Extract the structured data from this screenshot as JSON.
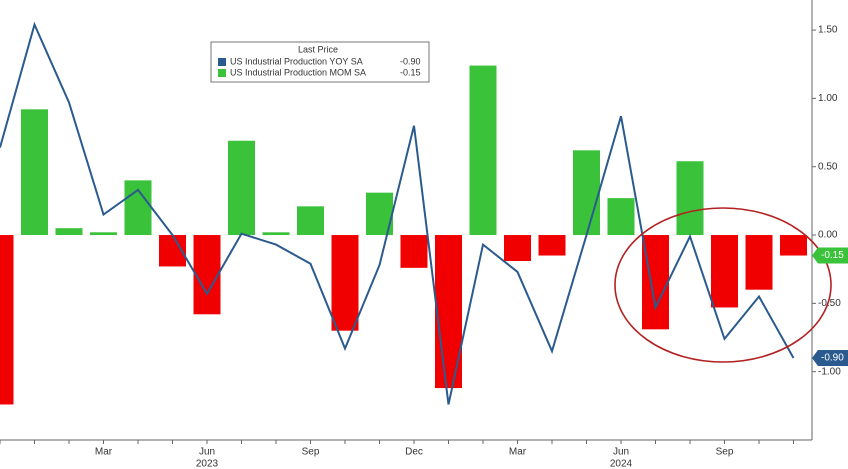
{
  "chart_data": {
    "type": "bar_line",
    "legend_title": "Last Price",
    "categories": [
      null,
      null,
      null,
      "Mar",
      null,
      null,
      "Jun",
      null,
      null,
      "Sep",
      null,
      null,
      "Dec",
      null,
      null,
      "Mar",
      null,
      null,
      "Jun",
      null,
      null,
      "Sep",
      null,
      null
    ],
    "category_years": [
      null,
      null,
      null,
      null,
      null,
      null,
      "2023",
      null,
      null,
      null,
      null,
      null,
      null,
      null,
      null,
      null,
      null,
      null,
      "2024",
      null,
      null,
      null,
      null,
      null
    ],
    "series": [
      {
        "name": "US Industrial Production YOY SA",
        "type": "line",
        "color": "#2b5b8e",
        "last_label": "-0.90",
        "values": [
          0.64,
          1.54,
          0.97,
          0.15,
          0.33,
          0.0,
          -0.43,
          0.01,
          -0.07,
          -0.21,
          -0.83,
          -0.22,
          0.8,
          -1.24,
          -0.07,
          -0.27,
          -0.85,
          0.0,
          0.87,
          -0.53,
          -0.01,
          -0.76,
          -0.45,
          -0.9
        ]
      },
      {
        "name": "US Industrial Production MOM SA",
        "type": "bar",
        "color": "#39c23a",
        "negative_color": "#f00000",
        "last_label": "-0.15",
        "values": [
          -1.24,
          0.92,
          0.05,
          0.02,
          0.4,
          -0.23,
          -0.58,
          0.69,
          0.02,
          0.21,
          -0.7,
          0.31,
          -0.24,
          -1.12,
          1.24,
          -0.19,
          -0.15,
          0.62,
          0.27,
          -0.69,
          0.54,
          -0.53,
          -0.4,
          -0.15
        ]
      }
    ],
    "ylim": [
      -1.5,
      1.72
    ],
    "yticks": [
      {
        "value": 1.5,
        "label": "1.50"
      },
      {
        "value": 1.0,
        "label": "1.00"
      },
      {
        "value": 0.5,
        "label": "0.50"
      },
      {
        "value": 0.0,
        "label": "0.00"
      },
      {
        "value": -0.5,
        "label": "-0.50"
      },
      {
        "value": -1.0,
        "label": "-1.00"
      }
    ],
    "grid": false
  }
}
